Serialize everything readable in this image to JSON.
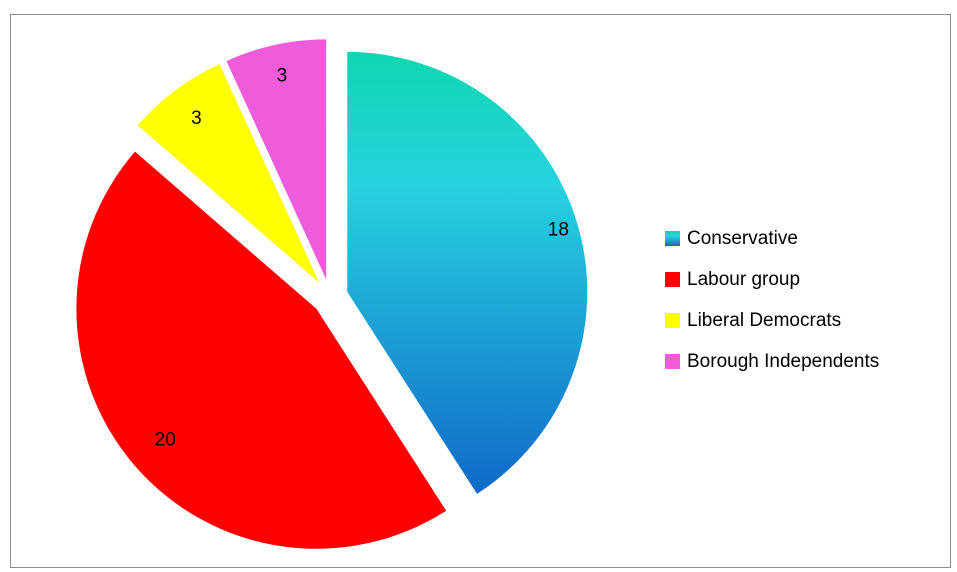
{
  "chart_data": {
    "type": "pie",
    "categories": [
      "Conservative",
      "Labour group",
      "Liberal Democrats",
      "Borough Independents"
    ],
    "values": [
      18,
      20,
      3,
      3
    ],
    "colors": [
      "#14c8d0",
      "#ff0000",
      "#ffff00",
      "#ee5cdc"
    ],
    "data_labels": [
      "18",
      "20",
      "3",
      "3"
    ],
    "exploded": true,
    "start_angle": "12 o'clock, clockwise",
    "legend_placement": "right",
    "title": ""
  },
  "legend": {
    "items": [
      {
        "label": "Conservative",
        "color": "#14c8d0"
      },
      {
        "label": "Labour group",
        "color": "#ff0000"
      },
      {
        "label": "Liberal Democrats",
        "color": "#ffff00"
      },
      {
        "label": "Borough Independents",
        "color": "#ee5cdc"
      }
    ]
  }
}
